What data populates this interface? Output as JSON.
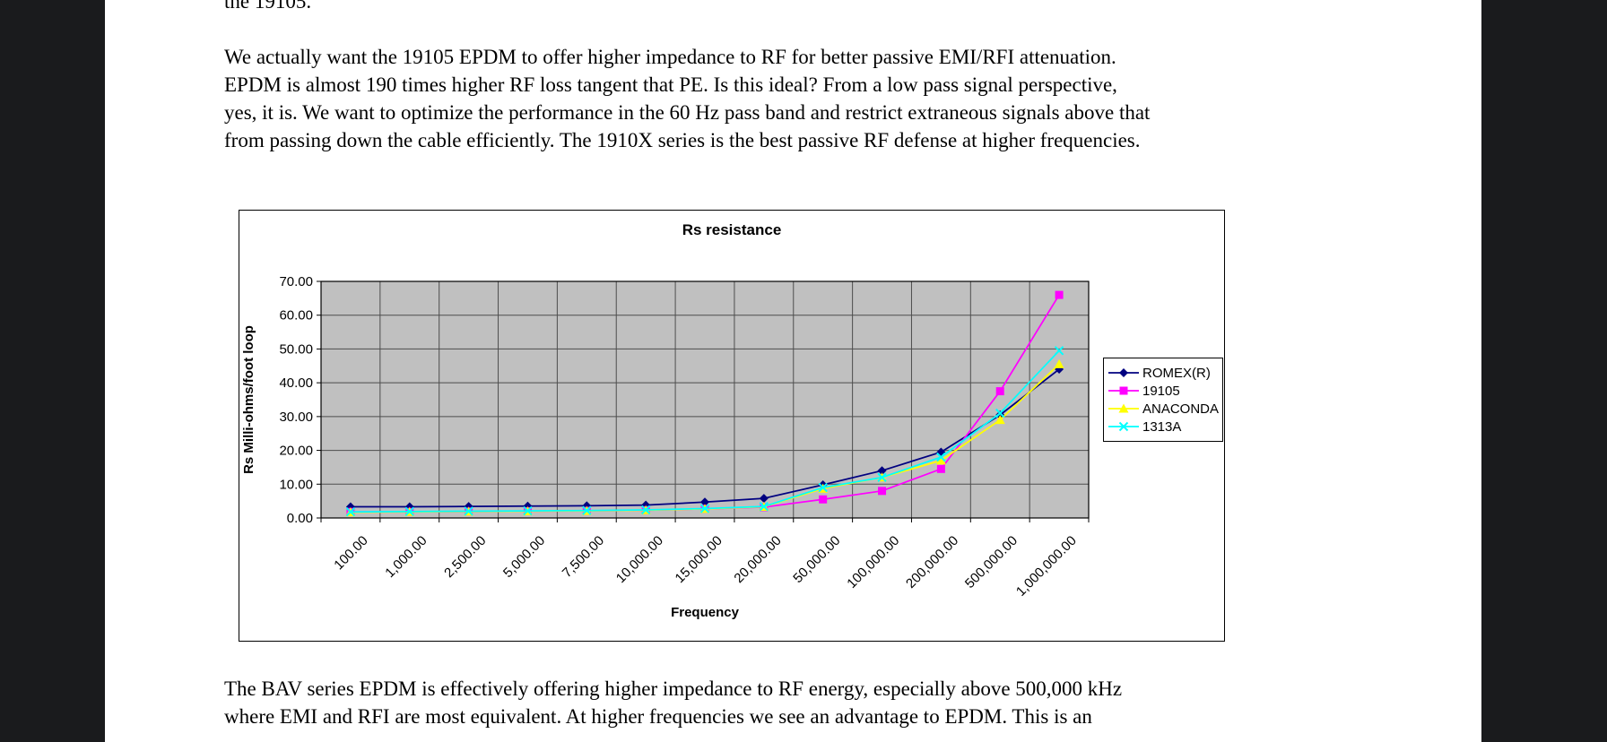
{
  "texts": {
    "top_partial_line": "the 19105.",
    "paragraph1_lines": [
      "We actually want the 19105 EPDM to offer higher impedance to RF for better passive EMI/RFI attenuation.",
      "EPDM is almost 190 times higher RF loss tangent that PE. Is this ideal? From a low pass signal perspective,",
      "yes, it is. We want to optimize the performance in the 60 Hz pass band and restrict extraneous signals above that",
      "from passing down the cable efficiently. The 1910X series is the best passive RF defense at higher frequencies."
    ],
    "paragraph2_lines": [
      "The BAV series EPDM is effectively offering higher impedance to RF energy, especially above 500,000 kHz",
      "where EMI and RFI are most equivalent. At higher frequencies we see an advantage to EPDM. This is an"
    ]
  },
  "colors": {
    "viewer_background": "#1a1b1d",
    "page_background": "#ffffff",
    "plot_background": "#c0c0c0",
    "gridline": "#4d4d4d",
    "axis": "#000000"
  },
  "chart_data": {
    "type": "line",
    "title": "Rs resistance",
    "xlabel": "Frequency",
    "ylabel": "Rs Milli-ohms/foot loop",
    "ylim": [
      0,
      70
    ],
    "ytick_step": 10,
    "ytick_labels": [
      "0.00",
      "10.00",
      "20.00",
      "30.00",
      "40.00",
      "50.00",
      "60.00",
      "70.00"
    ],
    "grid": true,
    "legend_position": "right",
    "categories": [
      "100.00",
      "1,000.00",
      "2,500.00",
      "5,000.00",
      "7,500.00",
      "10,000.00",
      "15,000.00",
      "20,000.00",
      "50,000.00",
      "100,000.00",
      "200,000.00",
      "500,000.00",
      "1,000,000.00"
    ],
    "series": [
      {
        "name": "ROMEX(R)",
        "color": "#000080",
        "marker": "diamond",
        "values": [
          3.3,
          3.3,
          3.4,
          3.5,
          3.6,
          3.8,
          4.7,
          5.8,
          9.8,
          14.0,
          19.5,
          30.5,
          44.0
        ]
      },
      {
        "name": "19105",
        "color": "#ff00ff",
        "marker": "square",
        "values": [
          1.8,
          1.8,
          1.9,
          2.0,
          2.1,
          2.3,
          2.7,
          3.2,
          5.5,
          8.0,
          14.5,
          37.5,
          66.0
        ]
      },
      {
        "name": "ANACONDA",
        "color": "#ffff00",
        "marker": "triangle",
        "values": [
          1.7,
          1.8,
          1.9,
          2.0,
          2.1,
          2.3,
          2.7,
          3.3,
          8.7,
          12.0,
          17.0,
          29.0,
          45.5
        ]
      },
      {
        "name": "1313A",
        "color": "#00ffff",
        "marker": "x",
        "values": [
          1.8,
          1.9,
          2.0,
          2.1,
          2.2,
          2.4,
          2.8,
          3.4,
          9.0,
          12.0,
          18.0,
          31.0,
          49.5
        ]
      }
    ]
  }
}
